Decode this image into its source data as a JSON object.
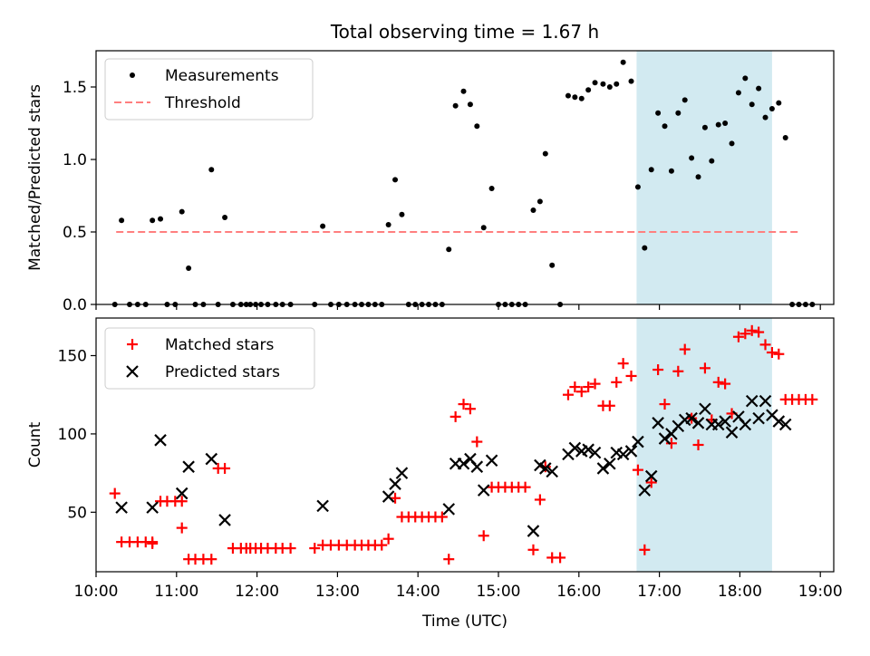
{
  "figure": {
    "title": "Total observing time = 1.67 h",
    "xlabel": "Time (UTC)"
  },
  "chart_data": [
    {
      "type": "scatter",
      "ylabel": "Matched/Predicted stars",
      "xlim": [
        "10:00",
        "19:10"
      ],
      "ylim": [
        0,
        1.75
      ],
      "yticks": [
        "0.0",
        "0.5",
        "1.0",
        "1.5"
      ],
      "shaded_region": {
        "start": "16:43",
        "end": "18:24",
        "color": "#add8e6"
      },
      "legend": {
        "placement": "top-left",
        "entries": [
          "Measurements",
          "Threshold"
        ]
      },
      "threshold": {
        "name": "Threshold",
        "y": 0.5,
        "x_start": "10:15",
        "x_end": "18:45",
        "color": "#ff7f7f",
        "style": "dashed"
      },
      "series": [
        {
          "name": "Measurements",
          "color": "#000000",
          "marker": "dot",
          "points": [
            [
              "10:14",
              0
            ],
            [
              "10:19",
              0.58
            ],
            [
              "10:25",
              0
            ],
            [
              "10:31",
              0
            ],
            [
              "10:37",
              0
            ],
            [
              "10:42",
              0.58
            ],
            [
              "10:48",
              0.59
            ],
            [
              "10:53",
              0
            ],
            [
              "10:59",
              0
            ],
            [
              "11:04",
              0.64
            ],
            [
              "11:09",
              0.25
            ],
            [
              "11:14",
              0
            ],
            [
              "11:20",
              0
            ],
            [
              "11:26",
              0.93
            ],
            [
              "11:31",
              0
            ],
            [
              "11:36",
              0.6
            ],
            [
              "11:42",
              0
            ],
            [
              "11:48",
              0
            ],
            [
              "11:52",
              0
            ],
            [
              "11:55",
              0
            ],
            [
              "11:59",
              0
            ],
            [
              "12:03",
              0
            ],
            [
              "12:08",
              0
            ],
            [
              "12:14",
              0
            ],
            [
              "12:19",
              0
            ],
            [
              "12:25",
              0
            ],
            [
              "12:43",
              0
            ],
            [
              "12:49",
              0.54
            ],
            [
              "12:55",
              0
            ],
            [
              "13:01",
              0
            ],
            [
              "13:07",
              0
            ],
            [
              "13:13",
              0
            ],
            [
              "13:18",
              0
            ],
            [
              "13:23",
              0
            ],
            [
              "13:28",
              0
            ],
            [
              "13:33",
              0
            ],
            [
              "13:38",
              0.55
            ],
            [
              "13:43",
              0.86
            ],
            [
              "13:48",
              0.62
            ],
            [
              "13:53",
              0
            ],
            [
              "13:58",
              0
            ],
            [
              "14:03",
              0
            ],
            [
              "14:08",
              0
            ],
            [
              "14:13",
              0
            ],
            [
              "14:18",
              0
            ],
            [
              "14:23",
              0.38
            ],
            [
              "14:28",
              1.37
            ],
            [
              "14:34",
              1.47
            ],
            [
              "14:39",
              1.38
            ],
            [
              "14:44",
              1.23
            ],
            [
              "14:49",
              0.53
            ],
            [
              "14:55",
              0.8
            ],
            [
              "15:00",
              0
            ],
            [
              "15:05",
              0
            ],
            [
              "15:10",
              0
            ],
            [
              "15:15",
              0
            ],
            [
              "15:20",
              0
            ],
            [
              "15:26",
              0.65
            ],
            [
              "15:31",
              0.71
            ],
            [
              "15:35",
              1.04
            ],
            [
              "15:40",
              0.27
            ],
            [
              "15:46",
              0
            ],
            [
              "15:52",
              1.44
            ],
            [
              "15:57",
              1.43
            ],
            [
              "16:02",
              1.42
            ],
            [
              "16:07",
              1.48
            ],
            [
              "16:12",
              1.53
            ],
            [
              "16:18",
              1.52
            ],
            [
              "16:23",
              1.5
            ],
            [
              "16:28",
              1.52
            ],
            [
              "16:33",
              1.67
            ],
            [
              "16:39",
              1.54
            ],
            [
              "16:44",
              0.81
            ],
            [
              "16:49",
              0.39
            ],
            [
              "16:54",
              0.93
            ],
            [
              "16:59",
              1.32
            ],
            [
              "17:04",
              1.23
            ],
            [
              "17:09",
              0.92
            ],
            [
              "17:14",
              1.32
            ],
            [
              "17:19",
              1.41
            ],
            [
              "17:24",
              1.01
            ],
            [
              "17:29",
              0.88
            ],
            [
              "17:34",
              1.22
            ],
            [
              "17:39",
              0.99
            ],
            [
              "17:44",
              1.24
            ],
            [
              "17:49",
              1.25
            ],
            [
              "17:54",
              1.11
            ],
            [
              "17:59",
              1.46
            ],
            [
              "18:04",
              1.56
            ],
            [
              "18:09",
              1.38
            ],
            [
              "18:14",
              1.49
            ],
            [
              "18:19",
              1.29
            ],
            [
              "18:24",
              1.35
            ],
            [
              "18:29",
              1.39
            ],
            [
              "18:34",
              1.15
            ],
            [
              "18:39",
              0
            ],
            [
              "18:44",
              0
            ],
            [
              "18:49",
              0
            ],
            [
              "18:54",
              0
            ]
          ]
        }
      ]
    },
    {
      "type": "scatter",
      "ylabel": "Count",
      "xlim": [
        "10:00",
        "19:10"
      ],
      "ylim": [
        12,
        174
      ],
      "yticks": [
        "50",
        "100",
        "150"
      ],
      "xticks": [
        "10:00",
        "11:00",
        "12:00",
        "13:00",
        "14:00",
        "15:00",
        "16:00",
        "17:00",
        "18:00",
        "19:00"
      ],
      "shaded_region": {
        "start": "16:43",
        "end": "18:24",
        "color": "#add8e6"
      },
      "legend": {
        "placement": "top-left",
        "entries": [
          "Matched stars",
          "Predicted stars"
        ]
      },
      "series": [
        {
          "name": "Matched stars",
          "color": "#ff0000",
          "marker": "plus",
          "points": [
            [
              "10:14",
              62
            ],
            [
              "10:19",
              31
            ],
            [
              "10:25",
              31
            ],
            [
              "10:31",
              31
            ],
            [
              "10:37",
              31
            ],
            [
              "10:42",
              31
            ],
            [
              "10:42",
              30
            ],
            [
              "10:48",
              57
            ],
            [
              "10:53",
              57
            ],
            [
              "10:59",
              57
            ],
            [
              "11:04",
              57
            ],
            [
              "11:04",
              40
            ],
            [
              "11:09",
              20
            ],
            [
              "11:14",
              20
            ],
            [
              "11:20",
              20
            ],
            [
              "11:26",
              20
            ],
            [
              "11:31",
              78
            ],
            [
              "11:36",
              78
            ],
            [
              "11:42",
              27
            ],
            [
              "11:48",
              27
            ],
            [
              "11:52",
              27
            ],
            [
              "11:55",
              27
            ],
            [
              "11:59",
              27
            ],
            [
              "12:03",
              27
            ],
            [
              "12:08",
              27
            ],
            [
              "12:14",
              27
            ],
            [
              "12:19",
              27
            ],
            [
              "12:25",
              27
            ],
            [
              "12:43",
              27
            ],
            [
              "12:49",
              29
            ],
            [
              "12:55",
              29
            ],
            [
              "13:01",
              29
            ],
            [
              "13:07",
              29
            ],
            [
              "13:13",
              29
            ],
            [
              "13:18",
              29
            ],
            [
              "13:23",
              29
            ],
            [
              "13:28",
              29
            ],
            [
              "13:33",
              29
            ],
            [
              "13:38",
              33
            ],
            [
              "13:43",
              59
            ],
            [
              "13:48",
              47
            ],
            [
              "13:53",
              47
            ],
            [
              "13:58",
              47
            ],
            [
              "14:03",
              47
            ],
            [
              "14:08",
              47
            ],
            [
              "14:13",
              47
            ],
            [
              "14:18",
              47
            ],
            [
              "14:23",
              20
            ],
            [
              "14:28",
              111
            ],
            [
              "14:34",
              119
            ],
            [
              "14:39",
              116
            ],
            [
              "14:44",
              95
            ],
            [
              "14:49",
              35
            ],
            [
              "14:55",
              66
            ],
            [
              "15:00",
              66
            ],
            [
              "15:05",
              66
            ],
            [
              "15:10",
              66
            ],
            [
              "15:15",
              66
            ],
            [
              "15:20",
              66
            ],
            [
              "15:26",
              26
            ],
            [
              "15:31",
              58
            ],
            [
              "15:35",
              79
            ],
            [
              "15:40",
              21
            ],
            [
              "15:46",
              21
            ],
            [
              "15:52",
              125
            ],
            [
              "15:57",
              130
            ],
            [
              "16:02",
              127
            ],
            [
              "16:07",
              130
            ],
            [
              "16:12",
              132
            ],
            [
              "16:18",
              118
            ],
            [
              "16:23",
              118
            ],
            [
              "16:28",
              133
            ],
            [
              "16:33",
              145
            ],
            [
              "16:39",
              137
            ],
            [
              "16:44",
              77
            ],
            [
              "16:49",
              26
            ],
            [
              "16:54",
              69
            ],
            [
              "16:59",
              141
            ],
            [
              "17:04",
              119
            ],
            [
              "17:09",
              94
            ],
            [
              "17:14",
              140
            ],
            [
              "17:19",
              154
            ],
            [
              "17:24",
              110
            ],
            [
              "17:29",
              93
            ],
            [
              "17:34",
              142
            ],
            [
              "17:39",
              109
            ],
            [
              "17:44",
              133
            ],
            [
              "17:49",
              132
            ],
            [
              "17:54",
              113
            ],
            [
              "17:59",
              162
            ],
            [
              "18:04",
              164
            ],
            [
              "18:09",
              166
            ],
            [
              "18:14",
              165
            ],
            [
              "18:19",
              157
            ],
            [
              "18:24",
              152
            ],
            [
              "18:29",
              151
            ],
            [
              "18:34",
              122
            ],
            [
              "18:39",
              122
            ],
            [
              "18:44",
              122
            ],
            [
              "18:49",
              122
            ],
            [
              "18:54",
              122
            ]
          ]
        },
        {
          "name": "Predicted stars",
          "color": "#000000",
          "marker": "x",
          "points": [
            [
              "10:19",
              53
            ],
            [
              "10:42",
              53
            ],
            [
              "10:48",
              96
            ],
            [
              "11:04",
              62
            ],
            [
              "11:09",
              79
            ],
            [
              "11:26",
              84
            ],
            [
              "11:36",
              45
            ],
            [
              "12:49",
              54
            ],
            [
              "13:38",
              60
            ],
            [
              "13:43",
              68
            ],
            [
              "13:48",
              75
            ],
            [
              "14:23",
              52
            ],
            [
              "14:28",
              81
            ],
            [
              "14:34",
              81
            ],
            [
              "14:39",
              84
            ],
            [
              "14:44",
              79
            ],
            [
              "14:49",
              64
            ],
            [
              "14:55",
              83
            ],
            [
              "15:26",
              38
            ],
            [
              "15:31",
              80
            ],
            [
              "15:35",
              78
            ],
            [
              "15:40",
              76
            ],
            [
              "15:52",
              87
            ],
            [
              "15:57",
              91
            ],
            [
              "16:02",
              89
            ],
            [
              "16:07",
              90
            ],
            [
              "16:12",
              88
            ],
            [
              "16:18",
              78
            ],
            [
              "16:23",
              81
            ],
            [
              "16:28",
              88
            ],
            [
              "16:33",
              87
            ],
            [
              "16:39",
              89
            ],
            [
              "16:44",
              95
            ],
            [
              "16:49",
              64
            ],
            [
              "16:54",
              73
            ],
            [
              "16:59",
              107
            ],
            [
              "17:04",
              97
            ],
            [
              "17:09",
              100
            ],
            [
              "17:14",
              105
            ],
            [
              "17:19",
              109
            ],
            [
              "17:24",
              110
            ],
            [
              "17:29",
              107
            ],
            [
              "17:34",
              116
            ],
            [
              "17:39",
              106
            ],
            [
              "17:44",
              106
            ],
            [
              "17:49",
              108
            ],
            [
              "17:54",
              101
            ],
            [
              "17:59",
              111
            ],
            [
              "18:04",
              106
            ],
            [
              "18:09",
              121
            ],
            [
              "18:14",
              110
            ],
            [
              "18:19",
              121
            ],
            [
              "18:24",
              112
            ],
            [
              "18:29",
              108
            ],
            [
              "18:34",
              106
            ]
          ]
        }
      ]
    }
  ]
}
